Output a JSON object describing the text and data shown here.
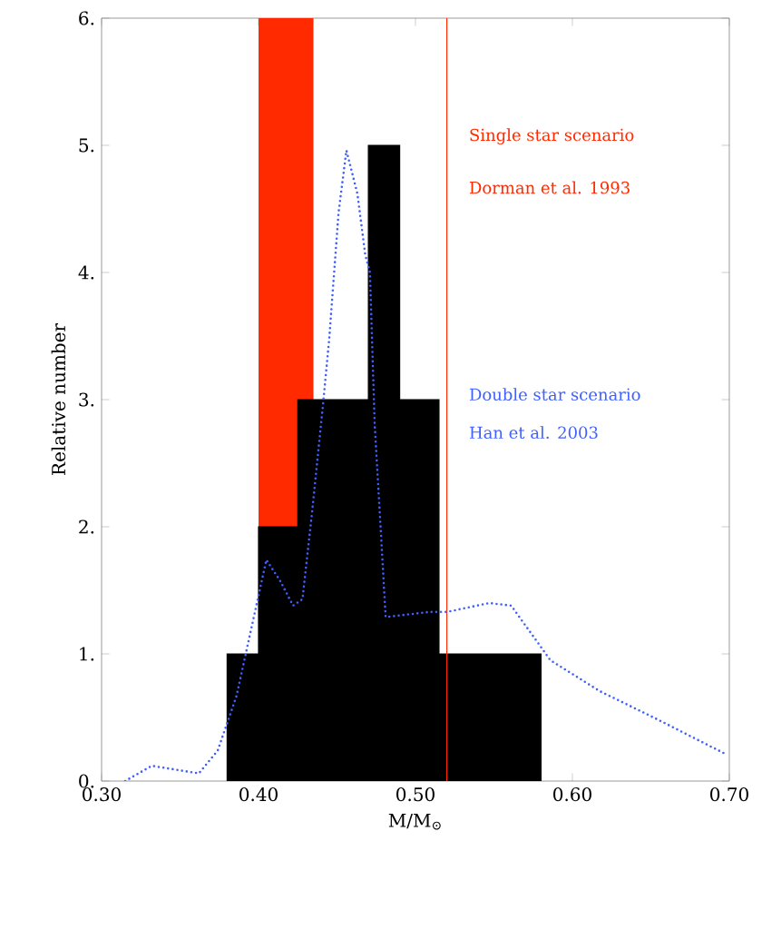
{
  "chart_data": {
    "type": "histogram",
    "xlabel": "M/M$_{⊙}$",
    "ylabel": "Relative number",
    "bins": [
      0.38,
      0.4,
      0.425,
      0.47,
      0.49,
      0.515,
      0.58
    ],
    "values": [
      1,
      2,
      3,
      5,
      3,
      1
    ],
    "color": "#000000",
    "series": [
      {
        "type": "line",
        "color": "#3f5fff",
        "line_style": "dotted",
        "x": [
          0.315,
          0.332,
          0.362,
          0.374,
          0.386,
          0.397,
          0.405,
          0.414,
          0.422,
          0.428,
          0.434,
          0.441,
          0.445,
          0.451,
          0.456,
          0.463,
          0.468,
          0.471,
          0.474,
          0.478,
          0.481,
          0.509,
          0.52,
          0.547,
          0.561,
          0.586,
          0.617,
          0.655,
          0.698
        ],
        "values": [
          0,
          0.12,
          0.06,
          0.24,
          0.67,
          1.29,
          1.74,
          1.57,
          1.38,
          1.43,
          2.1,
          2.95,
          3.47,
          4.47,
          4.96,
          4.62,
          4.14,
          4.0,
          2.81,
          1.95,
          1.29,
          1.33,
          1.33,
          1.4,
          1.38,
          0.95,
          0.71,
          0.48,
          0.21
        ]
      }
    ],
    "bands": [
      {
        "axis": "x",
        "from": 0.4,
        "to": 0.435,
        "color": "#ff2a00"
      }
    ],
    "ref_lines": [
      {
        "axis": "x",
        "value": 0.52,
        "color": "#ff2a00"
      }
    ],
    "annotations": [
      "Single star scenario",
      "Dorman et al. 1993",
      "Double star scenario",
      "Han et al. 2003"
    ],
    "xlim": [
      0.3,
      0.7
    ],
    "ylim": [
      0,
      6
    ],
    "xticks": [
      {
        "value": 0.3,
        "label": "0.30"
      },
      {
        "value": 0.4,
        "label": "0.40"
      },
      {
        "value": 0.5,
        "label": "0.50"
      },
      {
        "value": 0.6,
        "label": "0.60"
      },
      {
        "value": 0.7,
        "label": "0.70"
      }
    ],
    "yticks": [
      {
        "value": 0,
        "label": "0."
      },
      {
        "value": 1,
        "label": "1."
      },
      {
        "value": 2,
        "label": "2."
      },
      {
        "value": 3,
        "label": "3."
      },
      {
        "value": 4,
        "label": "4."
      },
      {
        "value": 5,
        "label": "5."
      },
      {
        "value": 6,
        "label": "6."
      }
    ]
  }
}
